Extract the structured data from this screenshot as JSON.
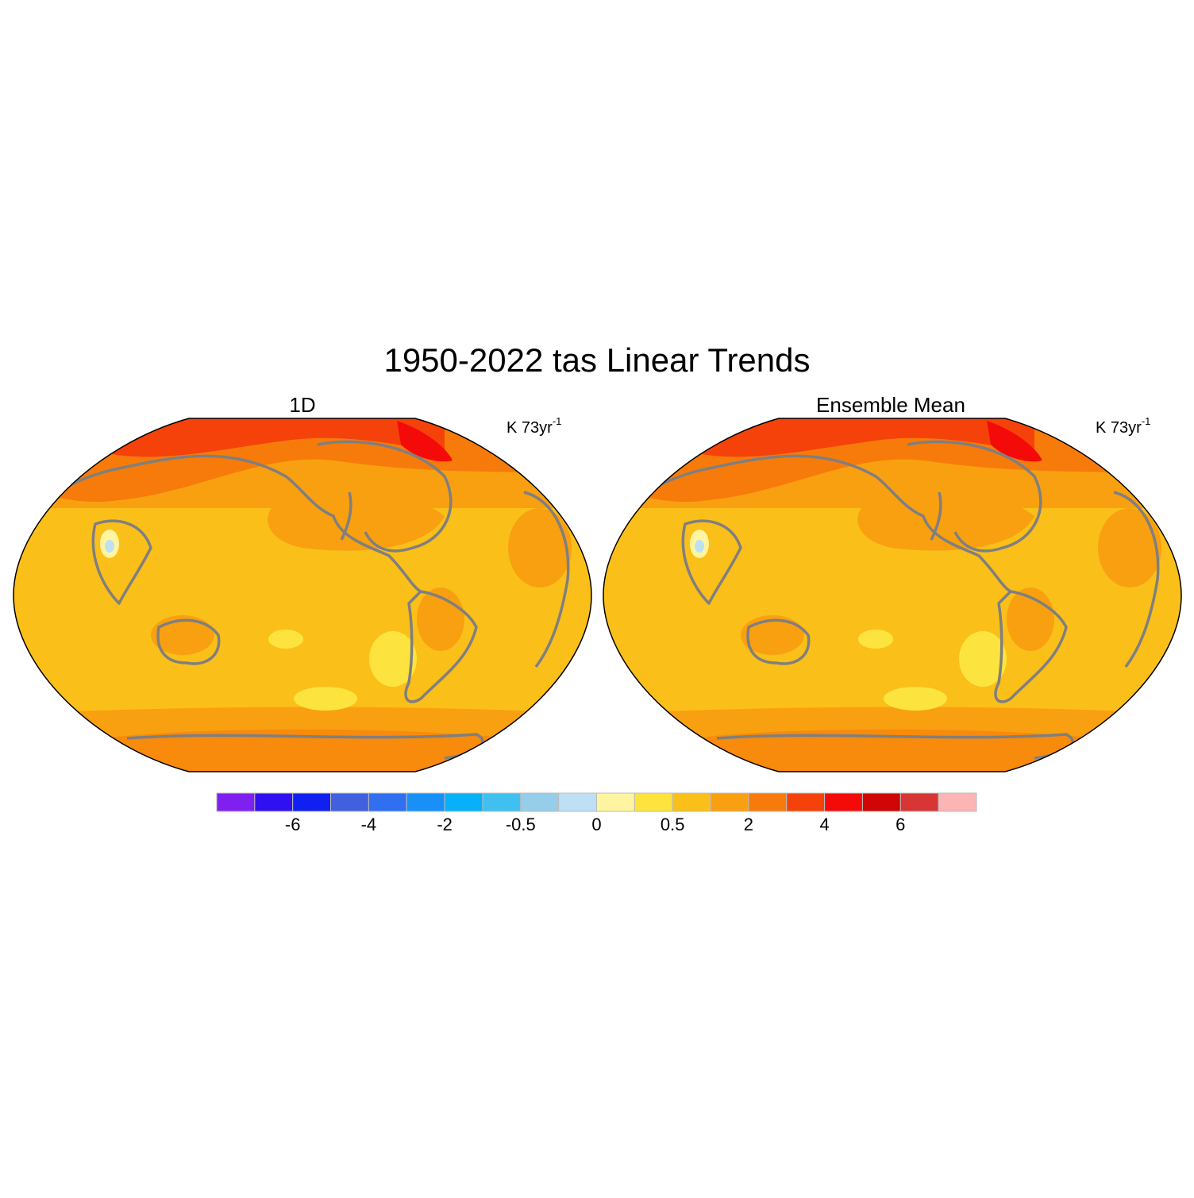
{
  "title": "1950-2022 tas Linear Trends",
  "panels": [
    {
      "title": "1D",
      "units": "K 73yr",
      "units_exponent": "-1"
    },
    {
      "title": "Ensemble Mean",
      "units": "K 73yr",
      "units_exponent": "-1"
    }
  ],
  "colorbar": {
    "colors": [
      "#8020f0",
      "#3010f0",
      "#1020f0",
      "#4060e0",
      "#3070f0",
      "#1890f8",
      "#08b0f8",
      "#40c0f0",
      "#96cdeb",
      "#bde0f5",
      "#fff5a0",
      "#fde33e",
      "#fbbf1a",
      "#f9a010",
      "#f77b0a",
      "#f5420a",
      "#f50a0a",
      "#d00505",
      "#d83535",
      "#fcb5b5"
    ],
    "labels": [
      -6,
      -4,
      -2,
      -0.5,
      0,
      0.5,
      2,
      4,
      6
    ]
  }
}
